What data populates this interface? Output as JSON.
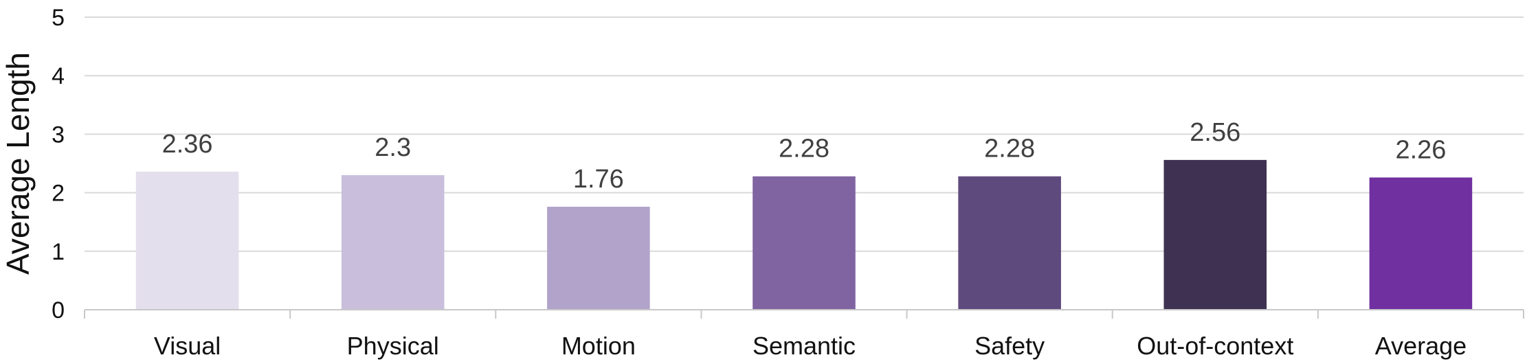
{
  "chart_data": {
    "type": "bar",
    "title": "",
    "xlabel": "",
    "ylabel": "Average Length",
    "ylim": [
      0,
      5
    ],
    "yticks": [
      0,
      1,
      2,
      3,
      4,
      5
    ],
    "grid": true,
    "legend": "none",
    "categories": [
      "Visual",
      "Physical",
      "Motion",
      "Semantic",
      "Safety",
      "Out-of-context",
      "Average"
    ],
    "values": [
      2.36,
      2.3,
      1.76,
      2.28,
      2.28,
      2.56,
      2.26
    ],
    "data_labels": [
      "2.36",
      "2.3",
      "1.76",
      "2.28",
      "2.28",
      "2.56",
      "2.26"
    ],
    "colors": [
      "#e4dfec",
      "#c9bfdc",
      "#b1a3ca",
      "#8064a2",
      "#5f4a7d",
      "#3f3151",
      "#7030a0"
    ]
  }
}
